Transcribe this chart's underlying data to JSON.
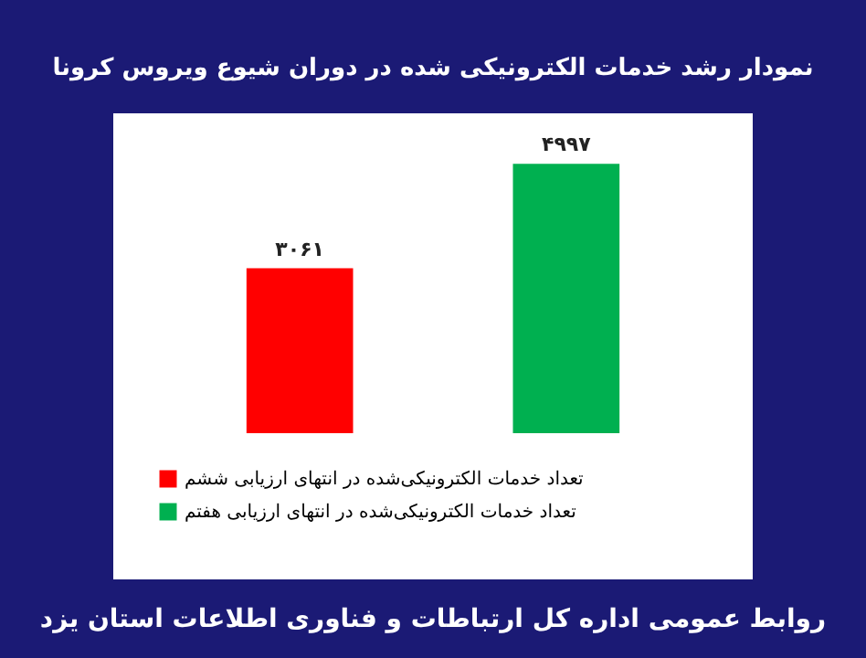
{
  "chart_data": {
    "type": "bar",
    "title": "نمودار رشد خدمات الکترونیکی شده در دوران شیوع ویروس کرونا",
    "categories": [
      null,
      null
    ],
    "stacked": true,
    "series": [
      {
        "name": "تعداد خدمات الکترونیکی‌شده در انتهای ارزیابی ششم",
        "color": "#ff0000",
        "values": [
          3061,
          null
        ],
        "value_labels": [
          "۳۰۶۱",
          null
        ]
      },
      {
        "name": "تعداد خدمات الکترونیکی‌شده در انتهای ارزیابی هفتم",
        "color": "#00b050",
        "values": [
          null,
          4997
        ],
        "value_labels": [
          null,
          "۴۹۹۷"
        ]
      }
    ],
    "legend": "bottom",
    "annotations": [
      "روابط عمومی اداره کل ارتباطات و فناوری اطلاعات استان یزد"
    ]
  }
}
